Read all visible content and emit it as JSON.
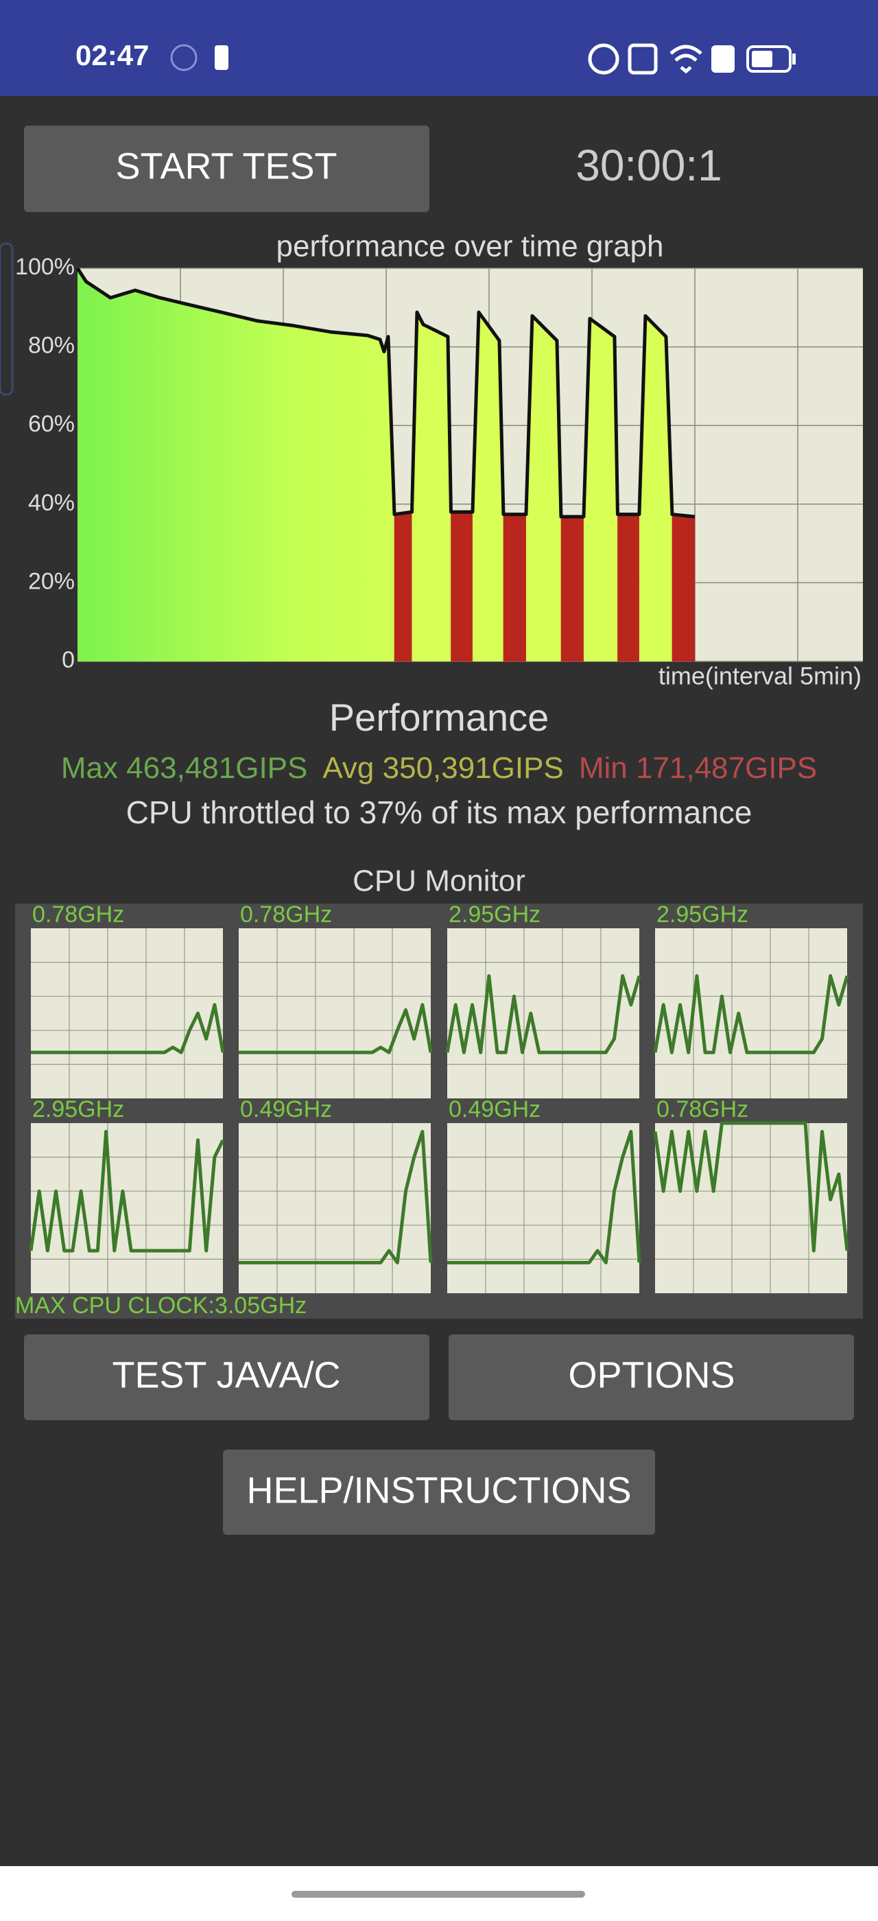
{
  "status_bar": {
    "time": "02:47"
  },
  "start_button": "START TEST",
  "timer": "30:00:1",
  "performance_graph": {
    "type": "area",
    "title": "performance over time graph",
    "x_label": "time(interval 5min)",
    "color": "#111111",
    "x": [
      0,
      0.42,
      1.6,
      2.8,
      4.0,
      5.2,
      7.0,
      8.75,
      10.5,
      12.3,
      14.1,
      14.7,
      14.9,
      15.1,
      15.4,
      16.25,
      16.5,
      16.8,
      18.0,
      18.15,
      19.2,
      19.5,
      20.5,
      20.7,
      21.8,
      22.1,
      23.3,
      23.5,
      24.6,
      24.9,
      26.1,
      26.25,
      27.3,
      27.6,
      28.6,
      28.9,
      30.0
    ],
    "values": [
      100,
      96.6,
      92.5,
      94.4,
      92.5,
      91,
      88.8,
      86.6,
      85.4,
      83.8,
      82.9,
      81.9,
      78.8,
      82.6,
      37.4,
      38,
      88.8,
      85.7,
      82.6,
      38,
      38,
      88.8,
      81.6,
      37.4,
      37.4,
      87.9,
      81.6,
      36.8,
      36.8,
      87.2,
      82.6,
      37.4,
      37.4,
      87.9,
      82.6,
      37.4,
      36.8
    ],
    "xlim": [
      0,
      38.17
    ],
    "ylim": [
      0,
      100
    ],
    "yticks": [
      0,
      {
        "value": 20,
        "label": "20%"
      },
      {
        "value": 40,
        "label": "40%"
      },
      {
        "value": 60,
        "label": "60%"
      },
      {
        "value": 80,
        "label": "80%"
      },
      {
        "value": 100,
        "label": "100%"
      }
    ]
  },
  "performance": {
    "heading": "Performance",
    "max": "Max 463,481GIPS",
    "avg": "Avg 350,391GIPS",
    "min": "Min 171,487GIPS",
    "throttle_note": "CPU throttled to 37% of its max performance"
  },
  "cpu_monitor": {
    "title": "CPU Monitor",
    "color": "#3d7a2a",
    "ylim": [
      0,
      100
    ],
    "cores": [
      {
        "label": "0.78GHz",
        "values": [
          27,
          27,
          27,
          27,
          27,
          27,
          27,
          27,
          27,
          27,
          27,
          27,
          27,
          27,
          27,
          27,
          27,
          30,
          27,
          40,
          50,
          35,
          55,
          27
        ]
      },
      {
        "label": "0.78GHz",
        "values": [
          27,
          27,
          27,
          27,
          27,
          27,
          27,
          27,
          27,
          27,
          27,
          27,
          27,
          27,
          27,
          27,
          27,
          30,
          27,
          40,
          52,
          35,
          55,
          27
        ]
      },
      {
        "label": "2.95GHz",
        "values": [
          27,
          55,
          27,
          55,
          27,
          72,
          27,
          27,
          60,
          27,
          50,
          27,
          27,
          27,
          27,
          27,
          27,
          27,
          27,
          27,
          35,
          72,
          55,
          72
        ]
      },
      {
        "label": "2.95GHz",
        "values": [
          27,
          55,
          27,
          55,
          27,
          72,
          27,
          27,
          60,
          27,
          50,
          27,
          27,
          27,
          27,
          27,
          27,
          27,
          27,
          27,
          35,
          72,
          55,
          72
        ]
      },
      {
        "label": "2.95GHz",
        "values": [
          25,
          60,
          25,
          60,
          25,
          25,
          60,
          25,
          25,
          95,
          25,
          60,
          25,
          25,
          25,
          25,
          25,
          25,
          25,
          25,
          90,
          25,
          80,
          90
        ]
      },
      {
        "label": "0.49GHz",
        "values": [
          18,
          18,
          18,
          18,
          18,
          18,
          18,
          18,
          18,
          18,
          18,
          18,
          18,
          18,
          18,
          18,
          18,
          18,
          25,
          18,
          60,
          80,
          95,
          18
        ]
      },
      {
        "label": "0.49GHz",
        "values": [
          18,
          18,
          18,
          18,
          18,
          18,
          18,
          18,
          18,
          18,
          18,
          18,
          18,
          18,
          18,
          18,
          18,
          18,
          25,
          18,
          60,
          80,
          95,
          18
        ]
      },
      {
        "label": "0.78GHz",
        "values": [
          95,
          60,
          95,
          60,
          95,
          60,
          95,
          60,
          100,
          100,
          100,
          100,
          100,
          100,
          100,
          100,
          100,
          100,
          100,
          25,
          95,
          55,
          70,
          25
        ]
      }
    ],
    "max_clock": "MAX CPU CLOCK:3.05GHz"
  },
  "buttons": {
    "test": "TEST JAVA/C",
    "options": "OPTIONS",
    "help": "HELP/INSTRUCTIONS"
  }
}
